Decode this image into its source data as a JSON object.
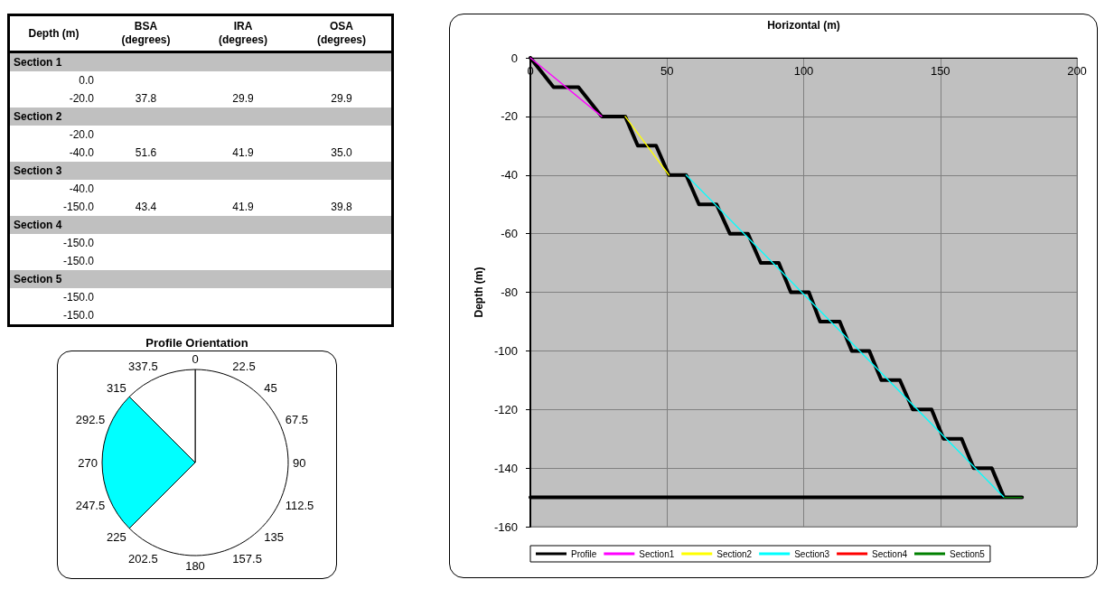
{
  "chart_data": [
    {
      "type": "other",
      "categories": [
        "Depth (m)",
        "BSA (degrees)",
        "IRA (degrees)",
        "OSA (degrees)"
      ],
      "y_categories": [
        "Section 1",
        "0.0",
        "-20.0",
        "Section 2",
        "-20.0",
        "-40.0",
        "Section 3",
        "-40.0",
        "-150.0",
        "Section 4",
        "-150.0",
        "-150.0",
        "Section 5",
        "-150.0",
        "-150.0"
      ],
      "cell_labels": [
        null,
        [
          null,
          null,
          null
        ],
        [
          "37.8",
          "29.9",
          "29.9"
        ],
        null,
        [
          null,
          null,
          null
        ],
        [
          "51.6",
          "41.9",
          "35.0"
        ],
        null,
        [
          null,
          null,
          null
        ],
        [
          "43.4",
          "41.9",
          "39.8"
        ],
        null,
        [
          null,
          null,
          null
        ],
        [
          null,
          null,
          null
        ],
        null,
        [
          null,
          null,
          null
        ],
        [
          null,
          null,
          null
        ]
      ]
    },
    {
      "type": "pie",
      "title": "Profile Orientation",
      "categories": [
        null,
        null,
        null
      ],
      "values": [
        62.5,
        25,
        12.5
      ],
      "colors": [
        "#ffffff",
        "#00ffff",
        "#ffffff"
      ],
      "annotations": [
        "0",
        "22.5",
        "45",
        "67.5",
        "90",
        "112.5",
        "135",
        "157.5",
        "180",
        "202.5",
        "225",
        "247.5",
        "270",
        "292.5",
        "315",
        "337.5"
      ]
    },
    {
      "type": "line",
      "xlabel": "Horizontal (m)",
      "ylabel": "Depth (m)",
      "xlim": [
        0,
        200
      ],
      "xticks": [
        0,
        50,
        100,
        150,
        200
      ],
      "ylim": [
        -160,
        0
      ],
      "yticks": [
        -160,
        -140,
        -120,
        -100,
        -80,
        -60,
        -40,
        -20,
        0
      ],
      "grid": true,
      "legend": "bottom",
      "marker": "none",
      "series": [
        {
          "name": "Profile",
          "color": "#000000",
          "x": [
            0,
            8.5,
            17.6,
            26.1,
            34.7,
            39.3,
            46,
            50.7,
            57,
            61.7,
            68.1,
            73,
            79.6,
            84.3,
            90.9,
            95.3,
            101.9,
            106,
            113.2,
            117.6,
            124,
            128.4,
            135.2,
            139.9,
            146.8,
            151.2,
            157.8,
            162.2,
            168.8,
            173.3,
            179.9,
            0
          ],
          "values": [
            0,
            -10,
            -10,
            -20,
            -20,
            -30,
            -30,
            -40,
            -40,
            -50,
            -50,
            -60,
            -60,
            -70,
            -70,
            -80,
            -80,
            -90,
            -90,
            -100,
            -100,
            -110,
            -110,
            -120,
            -120,
            -130,
            -130,
            -140,
            -140,
            -150,
            -150,
            -150
          ]
        },
        {
          "name": "Section1",
          "color": "#ff00ff",
          "x": [
            0,
            26.1
          ],
          "values": [
            0,
            -20
          ]
        },
        {
          "name": "Section2",
          "color": "#ffff00",
          "x": [
            34.7,
            50.7
          ],
          "values": [
            -20,
            -40
          ]
        },
        {
          "name": "Section3",
          "color": "#00ffff",
          "x": [
            57,
            173.3
          ],
          "values": [
            -40,
            -150
          ]
        },
        {
          "name": "Section4",
          "color": "#ff0000"
        },
        {
          "name": "Section5",
          "color": "#008000",
          "x": [
            173.3,
            179.9
          ],
          "values": [
            -150,
            -150
          ]
        }
      ]
    }
  ]
}
